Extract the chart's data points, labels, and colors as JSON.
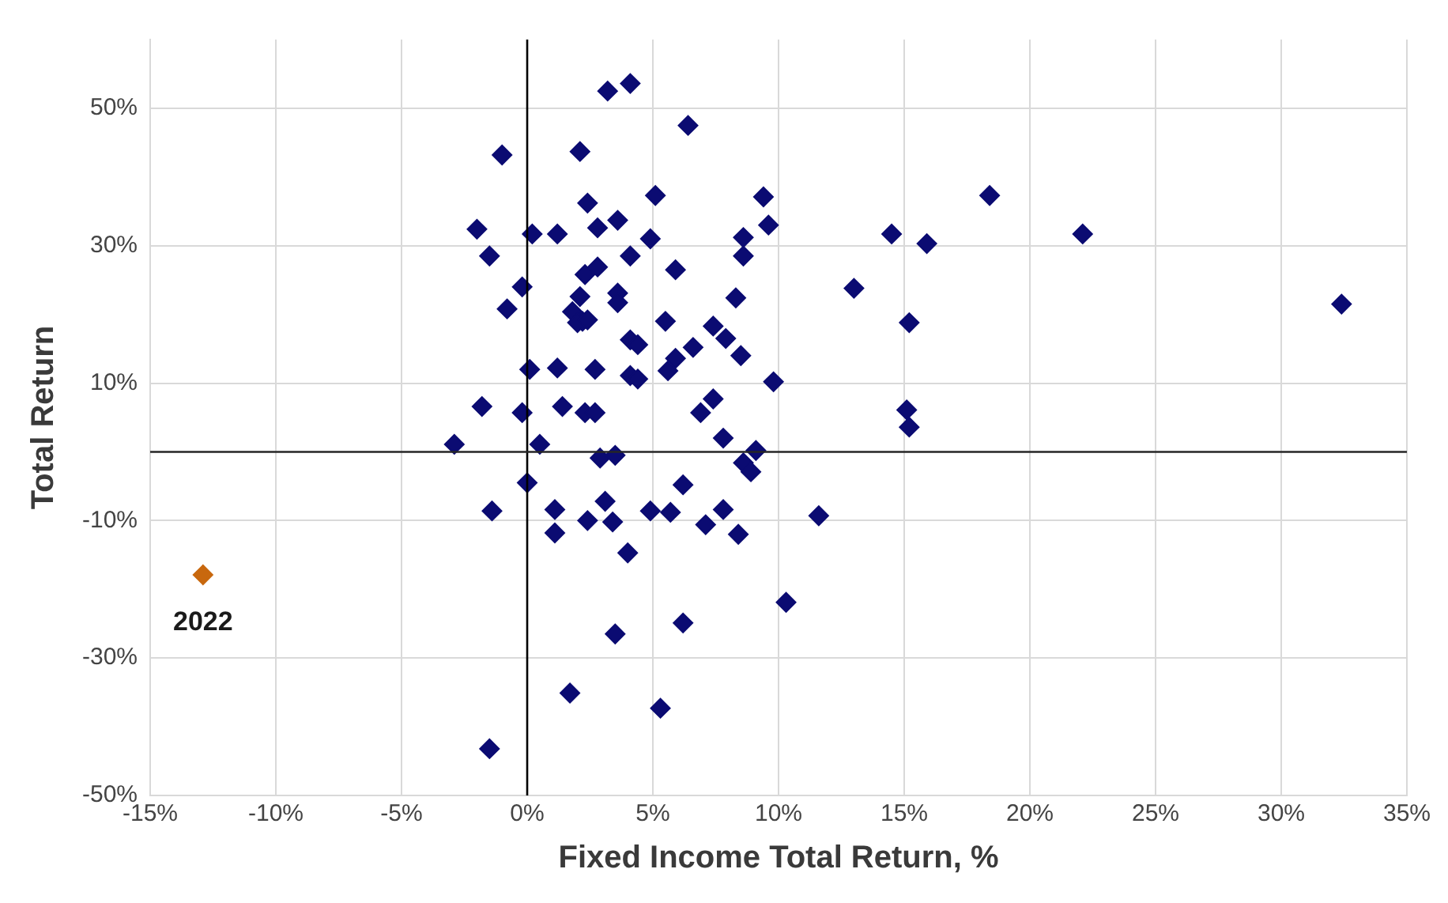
{
  "chart_data": {
    "type": "scatter",
    "xlabel": "Fixed Income Total Return, %",
    "ylabel": "Total Return",
    "marker": "diamond",
    "grid": true,
    "legend": false,
    "xlim": [
      -15,
      35
    ],
    "ylim": [
      -50,
      60
    ],
    "xticks": [
      {
        "value": -15,
        "label": "-15%"
      },
      {
        "value": -10,
        "label": "-10%"
      },
      {
        "value": -5,
        "label": "-5%"
      },
      {
        "value": 0,
        "label": "0%"
      },
      {
        "value": 5,
        "label": "5%"
      },
      {
        "value": 10,
        "label": "10%"
      },
      {
        "value": 15,
        "label": "15%"
      },
      {
        "value": 20,
        "label": "20%"
      },
      {
        "value": 25,
        "label": "25%"
      },
      {
        "value": 30,
        "label": "30%"
      },
      {
        "value": 35,
        "label": "35%"
      }
    ],
    "yticks": [
      {
        "value": -50,
        "label": "-50%"
      },
      {
        "value": -30,
        "label": "-30%"
      },
      {
        "value": -10,
        "label": "-10%"
      },
      {
        "value": 10,
        "label": "10%"
      },
      {
        "value": 30,
        "label": "30%"
      },
      {
        "value": 50,
        "label": "50%"
      }
    ],
    "ref_lines": [
      {
        "axis": "x",
        "value": 0,
        "color": "#000000"
      },
      {
        "axis": "y",
        "value": 0,
        "color": "#262626"
      }
    ],
    "series": [
      {
        "color": "#0b0b72",
        "x": [
          3.2,
          4.1,
          6.4,
          -1.0,
          2.1,
          2.4,
          5.1,
          9.4,
          -2.0,
          0.2,
          1.2,
          2.8,
          3.6,
          4.9,
          8.6,
          9.6,
          -1.5,
          4.1,
          8.6,
          5.9,
          2.3,
          2.8,
          -0.2,
          2.1,
          3.6,
          3.6,
          8.3,
          -0.8,
          1.8,
          2.2,
          2.0,
          2.4,
          5.5,
          7.4,
          7.9,
          4.1,
          4.4,
          6.6,
          5.9,
          8.5,
          0.1,
          1.2,
          2.7,
          4.1,
          4.4,
          5.6,
          9.8,
          -1.8,
          -0.2,
          1.4,
          2.3,
          2.7,
          7.4,
          6.9,
          7.8,
          -2.9,
          0.5,
          9.1,
          2.9,
          3.5,
          8.6,
          8.9,
          0.0,
          6.2,
          -1.4,
          1.1,
          3.1,
          2.4,
          3.4,
          4.9,
          5.7,
          7.8,
          7.1,
          8.4,
          11.6,
          1.1,
          4.0,
          10.3,
          6.2,
          3.5,
          1.7,
          5.3,
          -1.5,
          14.5,
          15.9,
          18.4,
          22.1,
          32.4,
          13.0,
          15.2,
          15.1,
          15.2
        ],
        "values": [
          52.5,
          53.6,
          47.5,
          43.2,
          43.7,
          36.2,
          37.3,
          37.1,
          32.4,
          31.7,
          31.7,
          32.6,
          33.7,
          31.0,
          31.2,
          33.0,
          28.5,
          28.5,
          28.5,
          26.5,
          25.8,
          26.9,
          24.0,
          22.6,
          23.1,
          21.7,
          22.4,
          20.8,
          20.4,
          19.0,
          18.8,
          19.2,
          19.0,
          18.3,
          16.5,
          16.3,
          15.6,
          15.2,
          13.6,
          14.0,
          12.0,
          12.2,
          12.0,
          11.1,
          10.6,
          11.8,
          10.2,
          6.6,
          5.7,
          6.6,
          5.7,
          5.7,
          7.7,
          5.7,
          2.0,
          1.1,
          1.1,
          0.2,
          -0.9,
          -0.5,
          -1.6,
          -2.9,
          -4.5,
          -4.8,
          -8.6,
          -8.4,
          -7.2,
          -10.0,
          -10.2,
          -8.6,
          -8.8,
          -8.4,
          -10.6,
          -12.0,
          -9.3,
          -11.8,
          -14.7,
          -21.9,
          -24.9,
          -26.5,
          -35.1,
          -37.3,
          -43.2,
          31.7,
          30.3,
          37.3,
          31.7,
          21.5,
          23.8,
          18.8,
          6.1,
          3.6
        ]
      },
      {
        "name": "2022",
        "color": "#c8680e",
        "x": [
          -12.9
        ],
        "values": [
          -17.9
        ]
      }
    ]
  }
}
